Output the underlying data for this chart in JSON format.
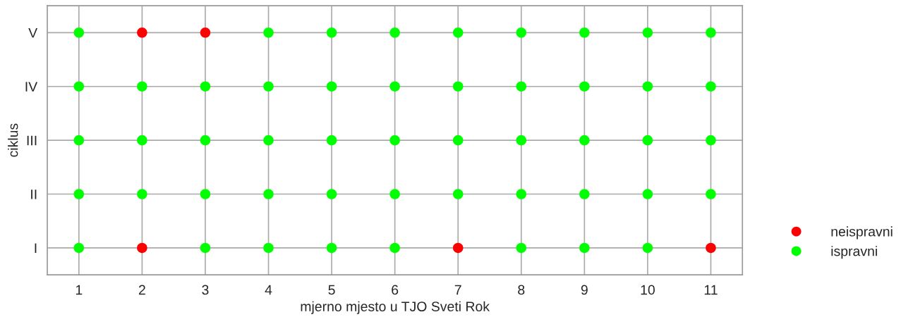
{
  "chart_data": {
    "type": "scatter",
    "orientation": "horizontal",
    "xlabel": "mjerno mjesto u TJO Sveti Rok",
    "ylabel": "ciklus",
    "categories": [
      "V",
      "IV",
      "III",
      "II",
      "I"
    ],
    "xlim": [
      0.5,
      11.5
    ],
    "xticks": [
      1,
      2,
      3,
      4,
      5,
      6,
      7,
      8,
      9,
      10,
      11
    ],
    "grid": true,
    "legend": "right",
    "marker": "circle",
    "series": [
      {
        "name": "neispravni",
        "color": "#ff0000",
        "values": [
          2,
          null,
          null,
          null,
          2
        ]
      },
      {
        "color": "#ff0000",
        "values": [
          3,
          null,
          null,
          null,
          7
        ]
      },
      {
        "color": "#ff0000",
        "values": [
          null,
          null,
          null,
          null,
          11
        ]
      },
      {
        "name": "ispravni",
        "color": "#00ff00",
        "values": [
          1,
          1,
          1,
          1,
          1
        ]
      },
      {
        "color": "#00ff00",
        "values": [
          null,
          2,
          2,
          2,
          null
        ]
      },
      {
        "color": "#00ff00",
        "values": [
          null,
          3,
          3,
          3,
          3
        ]
      },
      {
        "color": "#00ff00",
        "values": [
          4,
          4,
          4,
          4,
          4
        ]
      },
      {
        "color": "#00ff00",
        "values": [
          5,
          5,
          5,
          5,
          5
        ]
      },
      {
        "color": "#00ff00",
        "values": [
          6,
          6,
          6,
          6,
          6
        ]
      },
      {
        "color": "#00ff00",
        "values": [
          7,
          7,
          7,
          7,
          null
        ]
      },
      {
        "color": "#00ff00",
        "values": [
          8,
          8,
          8,
          8,
          8
        ]
      },
      {
        "color": "#00ff00",
        "values": [
          9,
          9,
          9,
          9,
          9
        ]
      },
      {
        "color": "#00ff00",
        "values": [
          10,
          10,
          10,
          10,
          10
        ]
      },
      {
        "color": "#00ff00",
        "values": [
          11,
          11,
          11,
          11,
          null
        ]
      }
    ]
  }
}
